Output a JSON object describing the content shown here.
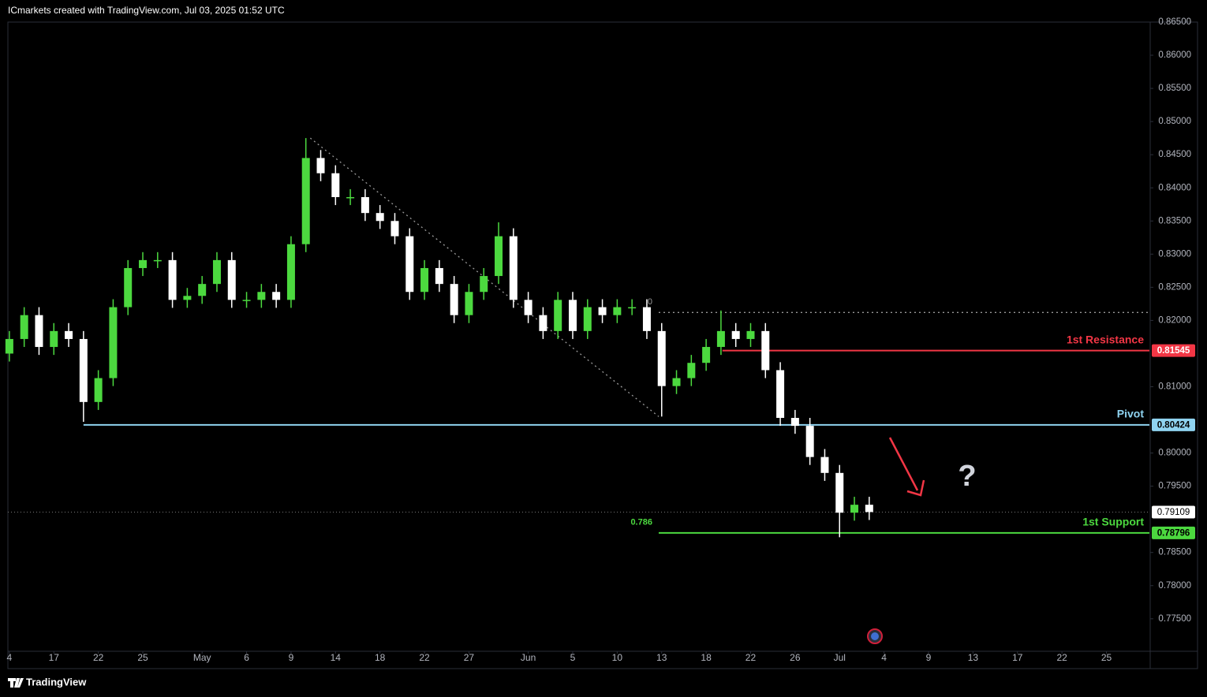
{
  "header": "ICmarkets created with TradingView.com, Jul 03, 2025 01:52 UTC",
  "footer": "TradingView",
  "chart_data": {
    "type": "candlestick",
    "up_color": "#4cd93f",
    "down_color": "#ffffff",
    "x": [
      0,
      1,
      2,
      3,
      4,
      5,
      6,
      7,
      8,
      9,
      10,
      11,
      12,
      13,
      14,
      15,
      16,
      17,
      18,
      19,
      20,
      21,
      22,
      23,
      24,
      25,
      26,
      27,
      28,
      29,
      30,
      31,
      32,
      33,
      34,
      35,
      36,
      37,
      38,
      39,
      40,
      41,
      42,
      43,
      44,
      45,
      46,
      47,
      48,
      49,
      50,
      51,
      52,
      53,
      54,
      55,
      56,
      57,
      58
    ],
    "open": [
      0.815,
      0.8172,
      0.8208,
      0.816,
      0.8184,
      0.8172,
      0.8077,
      0.8113,
      0.822,
      0.8279,
      0.8291,
      0.8291,
      0.8231,
      0.8237,
      0.8255,
      0.8291,
      0.8231,
      0.8231,
      0.8243,
      0.8231,
      0.8315,
      0.8445,
      0.8422,
      0.8386,
      0.8386,
      0.8362,
      0.835,
      0.8327,
      0.8243,
      0.8279,
      0.8255,
      0.8208,
      0.8243,
      0.8267,
      0.8327,
      0.8231,
      0.8208,
      0.8184,
      0.8231,
      0.8184,
      0.822,
      0.8208,
      0.822,
      0.822,
      0.8184,
      0.8101,
      0.8113,
      0.8136,
      0.816,
      0.8184,
      0.8172,
      0.8184,
      0.8125,
      0.8053,
      0.8041,
      0.7994,
      0.797,
      0.791,
      0.7922
    ],
    "high": [
      0.8184,
      0.822,
      0.822,
      0.8196,
      0.8196,
      0.8184,
      0.8125,
      0.8232,
      0.8291,
      0.8303,
      0.8303,
      0.8303,
      0.8249,
      0.8267,
      0.8303,
      0.8303,
      0.8243,
      0.8255,
      0.8255,
      0.8327,
      0.8475,
      0.8457,
      0.8434,
      0.8398,
      0.8398,
      0.8374,
      0.8362,
      0.8339,
      0.8291,
      0.8291,
      0.8267,
      0.8255,
      0.8279,
      0.8348,
      0.8339,
      0.8243,
      0.822,
      0.8243,
      0.8243,
      0.8232,
      0.8232,
      0.8232,
      0.8232,
      0.8232,
      0.8196,
      0.8125,
      0.8148,
      0.8172,
      0.8215,
      0.8196,
      0.8196,
      0.8196,
      0.8137,
      0.8065,
      0.8053,
      0.8006,
      0.7982,
      0.7934,
      0.7934
    ],
    "low": [
      0.8138,
      0.816,
      0.8148,
      0.8148,
      0.816,
      0.8047,
      0.8065,
      0.8101,
      0.8208,
      0.8267,
      0.8279,
      0.8219,
      0.8219,
      0.8225,
      0.8243,
      0.8219,
      0.8219,
      0.8219,
      0.8219,
      0.8219,
      0.8303,
      0.841,
      0.8374,
      0.8374,
      0.835,
      0.8338,
      0.8315,
      0.8231,
      0.8231,
      0.8243,
      0.8196,
      0.8196,
      0.8231,
      0.8255,
      0.8219,
      0.8196,
      0.8172,
      0.8172,
      0.8172,
      0.8172,
      0.8196,
      0.8196,
      0.8208,
      0.8172,
      0.8055,
      0.8089,
      0.8101,
      0.8124,
      0.8148,
      0.816,
      0.816,
      0.8113,
      0.8041,
      0.8029,
      0.7982,
      0.7958,
      0.7873,
      0.7898,
      0.7899
    ],
    "close": [
      0.8172,
      0.8208,
      0.816,
      0.8184,
      0.8172,
      0.8077,
      0.8113,
      0.822,
      0.8279,
      0.8291,
      0.8291,
      0.8231,
      0.8237,
      0.8255,
      0.8291,
      0.8231,
      0.8231,
      0.8243,
      0.8231,
      0.8315,
      0.8445,
      0.8422,
      0.8386,
      0.8386,
      0.8362,
      0.835,
      0.8327,
      0.8243,
      0.8279,
      0.8255,
      0.8208,
      0.8243,
      0.8267,
      0.8327,
      0.8231,
      0.8208,
      0.8184,
      0.8231,
      0.8184,
      0.822,
      0.8208,
      0.822,
      0.822,
      0.8184,
      0.8101,
      0.8113,
      0.8136,
      0.816,
      0.8184,
      0.8172,
      0.8184,
      0.8125,
      0.8053,
      0.8041,
      0.7994,
      0.797,
      0.791,
      0.7922,
      0.7911
    ],
    "xlim": [
      -0.1,
      76.9
    ],
    "xticks": [
      {
        "value": 0,
        "label": "4"
      },
      {
        "value": 3,
        "label": "17"
      },
      {
        "value": 6,
        "label": "22"
      },
      {
        "value": 9,
        "label": "25"
      },
      {
        "value": 13,
        "label": "May"
      },
      {
        "value": 16,
        "label": "6"
      },
      {
        "value": 19,
        "label": "9"
      },
      {
        "value": 22,
        "label": "14"
      },
      {
        "value": 25,
        "label": "18"
      },
      {
        "value": 28,
        "label": "22"
      },
      {
        "value": 31,
        "label": "27"
      },
      {
        "value": 35,
        "label": "Jun"
      },
      {
        "value": 38,
        "label": "5"
      },
      {
        "value": 41,
        "label": "10"
      },
      {
        "value": 44,
        "label": "13"
      },
      {
        "value": 47,
        "label": "18"
      },
      {
        "value": 50,
        "label": "22"
      },
      {
        "value": 53,
        "label": "26"
      },
      {
        "value": 56,
        "label": "Jul"
      },
      {
        "value": 59,
        "label": "4"
      },
      {
        "value": 62,
        "label": "9"
      },
      {
        "value": 65,
        "label": "13"
      },
      {
        "value": 68,
        "label": "17"
      },
      {
        "value": 71,
        "label": "22"
      },
      {
        "value": 74,
        "label": "25"
      }
    ],
    "ylim": [
      0.7701,
      0.865
    ],
    "yticks": [
      {
        "value": 0.775,
        "label": "0.77500"
      },
      {
        "value": 0.78,
        "label": "0.78000"
      },
      {
        "value": 0.785,
        "label": "0.78500"
      },
      {
        "value": 0.795,
        "label": "0.79500"
      },
      {
        "value": 0.8,
        "label": "0.80000"
      },
      {
        "value": 0.81,
        "label": "0.81000"
      },
      {
        "value": 0.82,
        "label": "0.82000"
      },
      {
        "value": 0.825,
        "label": "0.82500"
      },
      {
        "value": 0.83,
        "label": "0.83000"
      },
      {
        "value": 0.835,
        "label": "0.83500"
      },
      {
        "value": 0.84,
        "label": "0.84000"
      },
      {
        "value": 0.845,
        "label": "0.84500"
      },
      {
        "value": 0.85,
        "label": "0.85000"
      },
      {
        "value": 0.855,
        "label": "0.85500"
      },
      {
        "value": 0.86,
        "label": "0.86000"
      },
      {
        "value": 0.865,
        "label": "0.86500"
      }
    ],
    "levels": [
      {
        "name": "1st Resistance",
        "price": 0.81545,
        "color": "#f23645",
        "start": 48.1
      },
      {
        "name": "Pivot",
        "price": 0.80424,
        "color": "#8fd3f0",
        "start": 5
      },
      {
        "name": "1st Support",
        "price": 0.78796,
        "color": "#4cd93f",
        "start": 43.8
      }
    ],
    "last_price": 0.79109,
    "fib": {
      "start": 43.8,
      "levels": [
        {
          "ratio": 0,
          "price": 0.8212
        },
        {
          "ratio": 0.786,
          "price": 0.78796
        }
      ]
    },
    "trendline": {
      "x": [
        20.3,
        43.8
      ],
      "y": [
        0.8475,
        0.8055
      ]
    },
    "annotation": "?"
  }
}
